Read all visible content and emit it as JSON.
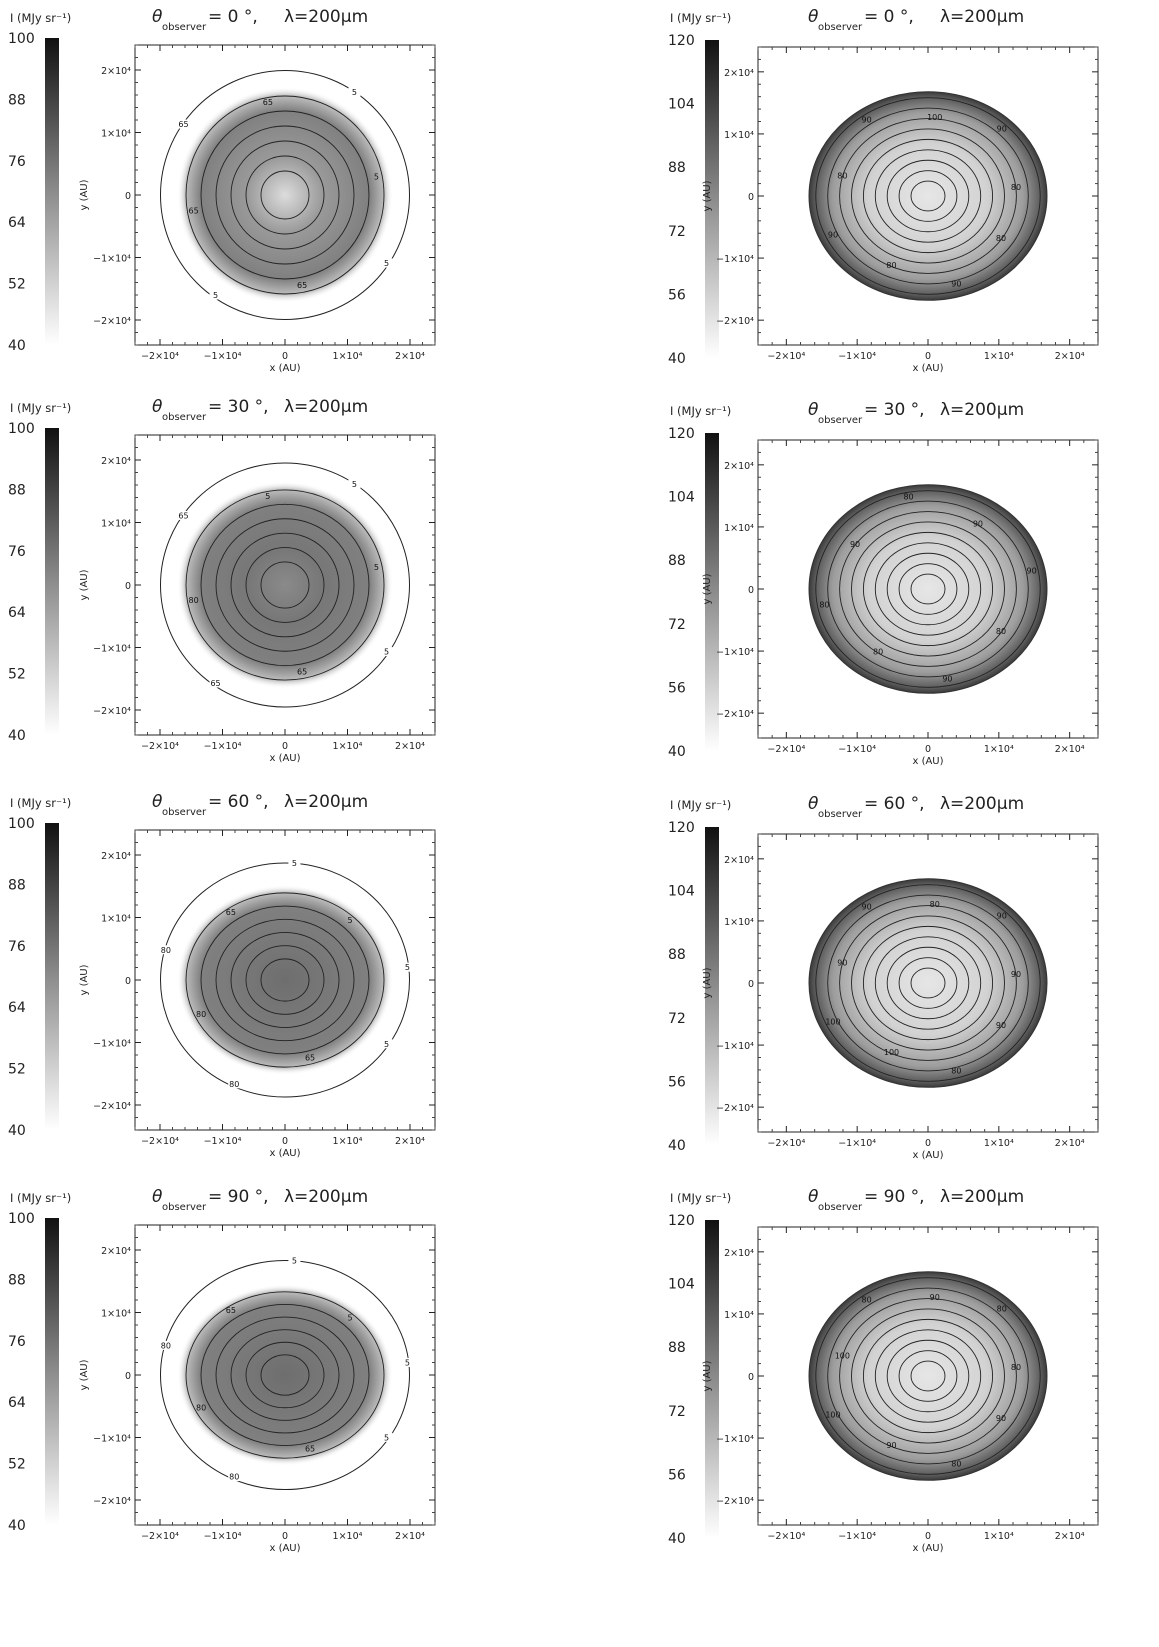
{
  "figure": {
    "colorbar_label": "I (MJy sr⁻¹)",
    "theta_symbol": "θ",
    "theta_subscript": "observer",
    "wavelength_text": "λ=200μm",
    "xlabel": "x (AU)",
    "ylabel": "y (AU)",
    "xticks": [
      "−2×10⁴",
      "−1×10⁴",
      "0",
      "1×10⁴",
      "2×10⁴"
    ],
    "yticks": [
      "2×10⁴",
      "1×10⁴",
      "0",
      "−1×10⁴",
      "−2×10⁴"
    ]
  },
  "chart_data": [
    {
      "type": "heatmap",
      "column": "left",
      "theta": "= 0 °,",
      "angle": 0,
      "colorbar_ticks": [
        "100",
        "88",
        "76",
        "64",
        "52",
        "40"
      ],
      "colorbar_range": [
        40,
        100
      ],
      "xlim": [
        -24000,
        24000
      ],
      "ylim": [
        -24000,
        24000
      ],
      "contour_labels": [
        "5",
        "65",
        "5",
        "65",
        "65",
        "65",
        "5",
        "5"
      ]
    },
    {
      "type": "heatmap",
      "column": "left",
      "theta": "= 30 °,",
      "angle": 30,
      "colorbar_ticks": [
        "100",
        "88",
        "76",
        "64",
        "52",
        "40"
      ],
      "colorbar_range": [
        40,
        100
      ],
      "xlim": [
        -24000,
        24000
      ],
      "ylim": [
        -24000,
        24000
      ],
      "contour_labels": [
        "5",
        "65",
        "65",
        "80",
        "65",
        "5",
        "5",
        "5"
      ]
    },
    {
      "type": "heatmap",
      "column": "left",
      "theta": "= 60 °,",
      "angle": 60,
      "colorbar_ticks": [
        "100",
        "88",
        "76",
        "64",
        "52",
        "40"
      ],
      "colorbar_range": [
        40,
        100
      ],
      "xlim": [
        -24000,
        24000
      ],
      "ylim": [
        -24000,
        24000
      ],
      "contour_labels": [
        "5",
        "65",
        "80",
        "80",
        "80",
        "65",
        "5",
        "5",
        "5"
      ]
    },
    {
      "type": "heatmap",
      "column": "left",
      "theta": "= 90 °,",
      "angle": 90,
      "colorbar_ticks": [
        "100",
        "88",
        "76",
        "64",
        "52",
        "40"
      ],
      "colorbar_range": [
        40,
        100
      ],
      "xlim": [
        -24000,
        24000
      ],
      "ylim": [
        -24000,
        24000
      ],
      "contour_labels": [
        "5",
        "65",
        "80",
        "80",
        "80",
        "65",
        "5",
        "5",
        "5"
      ]
    },
    {
      "type": "heatmap",
      "column": "right",
      "theta": "= 0 °,",
      "angle": 0,
      "colorbar_ticks": [
        "120",
        "104",
        "88",
        "72",
        "56",
        "40"
      ],
      "colorbar_range": [
        40,
        120
      ],
      "xlim": [
        -24000,
        24000
      ],
      "ylim": [
        -24000,
        24000
      ],
      "contour_labels": [
        "80",
        "90",
        "80",
        "90",
        "80",
        "90",
        "100",
        "90",
        "80"
      ]
    },
    {
      "type": "heatmap",
      "column": "right",
      "theta": "= 30 °,",
      "angle": 30,
      "colorbar_ticks": [
        "120",
        "104",
        "88",
        "72",
        "56",
        "40"
      ],
      "colorbar_range": [
        40,
        120
      ],
      "xlim": [
        -24000,
        24000
      ],
      "ylim": [
        -24000,
        24000
      ],
      "contour_labels": [
        "80",
        "90",
        "80",
        "80",
        "90",
        "80",
        "90",
        "90"
      ]
    },
    {
      "type": "heatmap",
      "column": "right",
      "theta": "= 60 °,",
      "angle": 60,
      "colorbar_ticks": [
        "120",
        "104",
        "88",
        "72",
        "56",
        "40"
      ],
      "colorbar_range": [
        40,
        120
      ],
      "xlim": [
        -24000,
        24000
      ],
      "ylim": [
        -24000,
        24000
      ],
      "contour_labels": [
        "90",
        "80",
        "100",
        "100",
        "90",
        "90",
        "80",
        "90",
        "90"
      ]
    },
    {
      "type": "heatmap",
      "column": "right",
      "theta": "= 90 °,",
      "angle": 90,
      "colorbar_ticks": [
        "120",
        "104",
        "88",
        "72",
        "56",
        "40"
      ],
      "colorbar_range": [
        40,
        120
      ],
      "xlim": [
        -24000,
        24000
      ],
      "ylim": [
        -24000,
        24000
      ],
      "contour_labels": [
        "90",
        "80",
        "90",
        "100",
        "100",
        "80",
        "90",
        "80",
        "80"
      ]
    }
  ]
}
